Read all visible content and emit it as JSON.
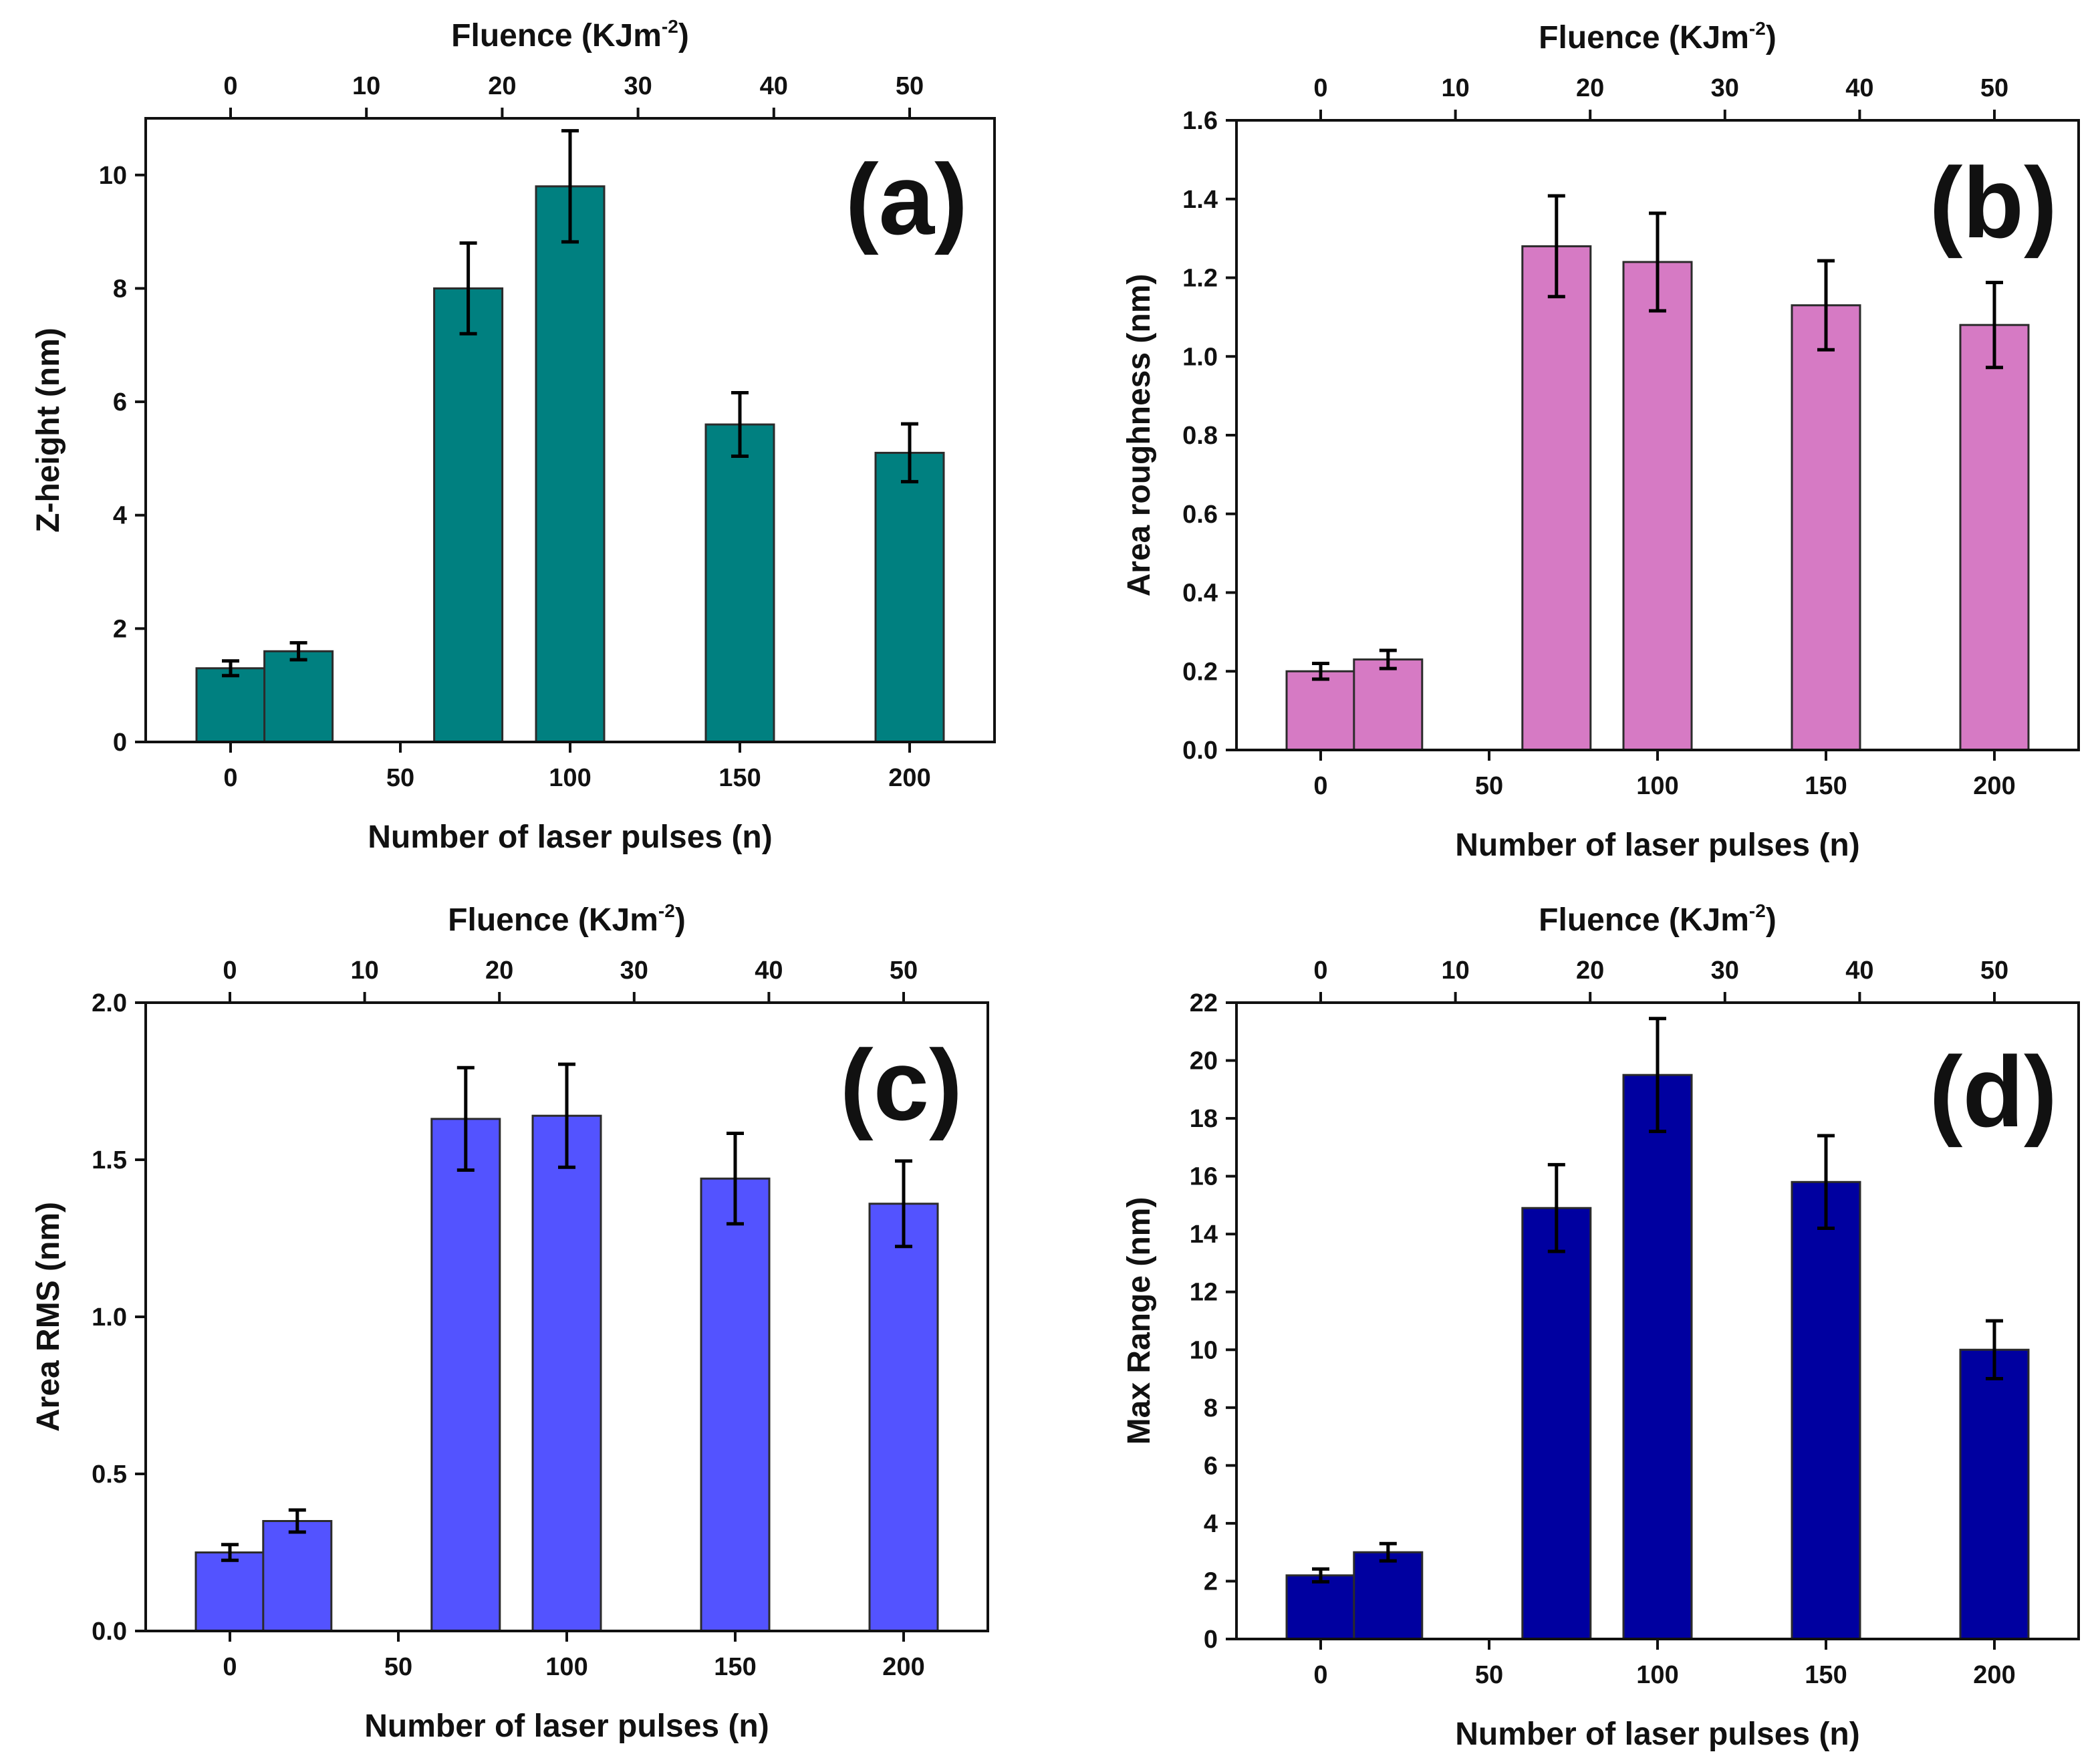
{
  "chart_data": [
    {
      "type": "bar",
      "panel": "(a)",
      "title": "",
      "xlabel": "Number of laser pulses (n)",
      "ylabel": "Z-height (nm)",
      "top_xlabel_text": "Fluence (KJm",
      "top_xlabel_sup": "-2",
      "top_xlabel_close": ")",
      "color": "#008080",
      "x": [
        0,
        20,
        70,
        100,
        150,
        200
      ],
      "values": [
        1.3,
        1.6,
        8.0,
        9.8,
        5.6,
        5.1
      ],
      "errors": [
        0.13,
        0.15,
        0.8,
        0.98,
        0.56,
        0.51
      ],
      "xlim": [
        -25,
        225
      ],
      "ylim": [
        0,
        11
      ],
      "xticks": [
        0,
        50,
        100,
        150,
        200
      ],
      "xtick_labels": [
        "0",
        "50",
        "100",
        "150",
        "200"
      ],
      "yticks": [
        0,
        2,
        4,
        6,
        8,
        10
      ],
      "ytick_labels": [
        "0",
        "2",
        "4",
        "6",
        "8",
        "10"
      ],
      "top_ticks": [
        0,
        10,
        20,
        30,
        40,
        50
      ],
      "top_tick_labels": [
        "0",
        "10",
        "20",
        "30",
        "40",
        "50"
      ]
    },
    {
      "type": "bar",
      "panel": "(b)",
      "title": "",
      "xlabel": "Number of laser pulses (n)",
      "ylabel": "Area roughness (nm)",
      "top_xlabel_text": "Fluence (KJm",
      "top_xlabel_sup": "-2",
      "top_xlabel_close": ")",
      "color": "#D67AC4",
      "x": [
        0,
        20,
        70,
        100,
        150,
        200
      ],
      "values": [
        0.2,
        0.23,
        1.28,
        1.24,
        1.13,
        1.08
      ],
      "errors": [
        0.02,
        0.023,
        0.128,
        0.124,
        0.113,
        0.108
      ],
      "xlim": [
        -25,
        225
      ],
      "ylim": [
        0,
        1.6
      ],
      "xticks": [
        0,
        50,
        100,
        150,
        200
      ],
      "xtick_labels": [
        "0",
        "50",
        "100",
        "150",
        "200"
      ],
      "yticks": [
        0,
        0.2,
        0.4,
        0.6,
        0.8,
        1.0,
        1.2,
        1.4,
        1.6
      ],
      "ytick_labels": [
        "0.0",
        "0.2",
        "0.4",
        "0.6",
        "0.8",
        "1.0",
        "1.2",
        "1.4",
        "1.6"
      ],
      "top_ticks": [
        0,
        10,
        20,
        30,
        40,
        50
      ],
      "top_tick_labels": [
        "0",
        "10",
        "20",
        "30",
        "40",
        "50"
      ]
    },
    {
      "type": "bar",
      "panel": "(c)",
      "title": "",
      "xlabel": "Number of laser pulses (n)",
      "ylabel": "Area RMS (nm)",
      "top_xlabel_text": "Fluence (KJm",
      "top_xlabel_sup": "-2",
      "top_xlabel_close": ")",
      "color": "#5353FF",
      "x": [
        0,
        20,
        70,
        100,
        150,
        200
      ],
      "values": [
        0.25,
        0.35,
        1.63,
        1.64,
        1.44,
        1.36
      ],
      "errors": [
        0.025,
        0.035,
        0.163,
        0.164,
        0.144,
        0.136
      ],
      "xlim": [
        -25,
        225
      ],
      "ylim": [
        0,
        2.0
      ],
      "xticks": [
        0,
        50,
        100,
        150,
        200
      ],
      "xtick_labels": [
        "0",
        "50",
        "100",
        "150",
        "200"
      ],
      "yticks": [
        0,
        0.5,
        1.0,
        1.5,
        2.0
      ],
      "ytick_labels": [
        "0.0",
        "0.5",
        "1.0",
        "1.5",
        "2.0"
      ],
      "top_ticks": [
        0,
        10,
        20,
        30,
        40,
        50
      ],
      "top_tick_labels": [
        "0",
        "10",
        "20",
        "30",
        "40",
        "50"
      ]
    },
    {
      "type": "bar",
      "panel": "(d)",
      "title": "",
      "xlabel": "Number of laser pulses (n)",
      "ylabel": "Max Range (nm)",
      "top_xlabel_text": "Fluence (KJm",
      "top_xlabel_sup": "-2",
      "top_xlabel_close": ")",
      "color": "#0000A0",
      "x": [
        0,
        20,
        70,
        100,
        150,
        200
      ],
      "values": [
        2.2,
        3.0,
        14.9,
        19.5,
        15.8,
        10.0
      ],
      "errors": [
        0.22,
        0.3,
        1.5,
        1.95,
        1.6,
        1.0
      ],
      "xlim": [
        -25,
        225
      ],
      "ylim": [
        0,
        22
      ],
      "xticks": [
        0,
        50,
        100,
        150,
        200
      ],
      "xtick_labels": [
        "0",
        "50",
        "100",
        "150",
        "200"
      ],
      "yticks": [
        0,
        2,
        4,
        6,
        8,
        10,
        12,
        14,
        16,
        18,
        20,
        22
      ],
      "ytick_labels": [
        "0",
        "2",
        "4",
        "6",
        "8",
        "10",
        "12",
        "14",
        "16",
        "18",
        "20",
        "22"
      ],
      "top_ticks": [
        0,
        10,
        20,
        30,
        40,
        50
      ],
      "top_tick_labels": [
        "0",
        "10",
        "20",
        "30",
        "40",
        "50"
      ]
    }
  ]
}
